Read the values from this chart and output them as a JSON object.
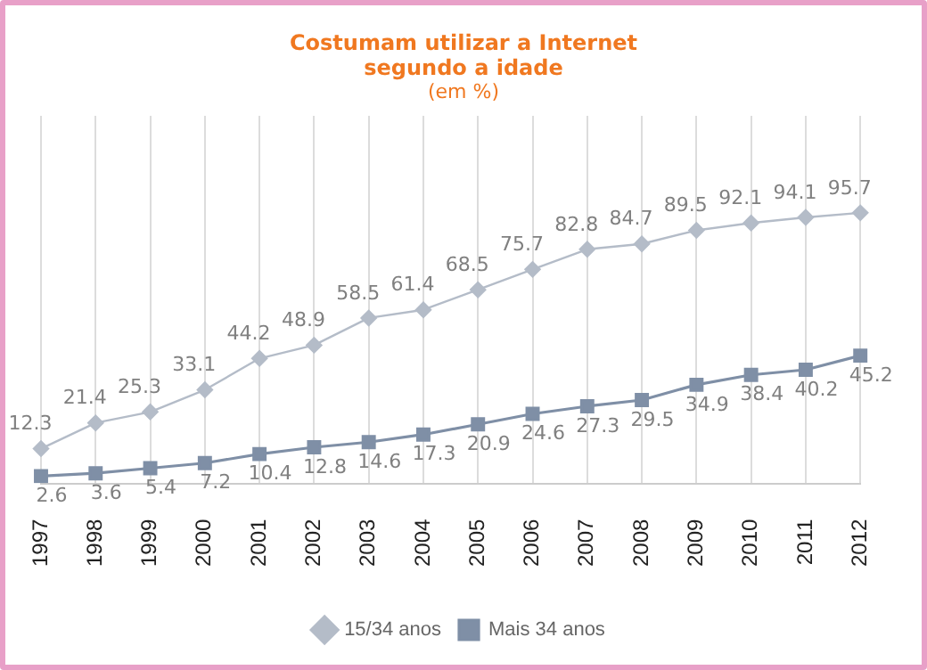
{
  "chart_data": {
    "type": "line",
    "title": "Costumam utilizar a Internet segundo a idade",
    "subtitle": "(em %)",
    "categories": [
      "1997",
      "1998",
      "1999",
      "2000",
      "2001",
      "2002",
      "2003",
      "2004",
      "2005",
      "2006",
      "2007",
      "2008",
      "2009",
      "2010",
      "2011",
      "2012"
    ],
    "series": [
      {
        "name": "15/34 anos",
        "color": "#b4bcc8",
        "marker": "diamond",
        "values": [
          12.3,
          21.4,
          25.3,
          33.1,
          44.2,
          48.9,
          58.5,
          61.4,
          68.5,
          75.7,
          82.8,
          84.7,
          89.5,
          92.1,
          94.1,
          95.7
        ]
      },
      {
        "name": "Mais 34 anos",
        "color": "#7f8fa6",
        "marker": "square",
        "values": [
          2.6,
          3.6,
          5.4,
          7.2,
          10.4,
          12.8,
          14.6,
          17.3,
          20.9,
          24.6,
          27.3,
          29.5,
          34.9,
          38.4,
          40.2,
          45.2
        ]
      }
    ],
    "ylim": [
      0,
      130
    ],
    "tick_labels": "x",
    "grid": "x",
    "legend": "bottom",
    "data_labels": true
  }
}
